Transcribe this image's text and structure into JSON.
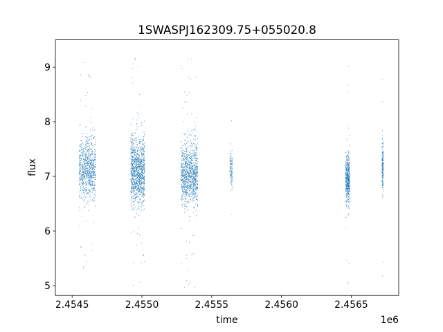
{
  "chart_data": {
    "type": "scatter",
    "title": "1SWASPJ162309.75+055020.8",
    "xlabel": "time",
    "ylabel": "flux",
    "x_offset_label": "1e6",
    "xlim": [
      2.45438,
      2.45684
    ],
    "ylim": [
      4.82,
      9.5
    ],
    "x_ticks": [
      2.4545,
      2.455,
      2.4555,
      2.456,
      2.4565
    ],
    "x_tick_labels": [
      "2.4545",
      "2.4550",
      "2.4555",
      "2.4560",
      "2.4565"
    ],
    "y_ticks": [
      5,
      6,
      7,
      8,
      9
    ],
    "y_tick_labels": [
      "5",
      "6",
      "7",
      "8",
      "9"
    ],
    "grid": false,
    "legend": "none",
    "marker_color": "#1f77b4",
    "series": [
      {
        "values": [
          {
            "x_range": [
              2.45455,
              2.45467
            ],
            "y_center": 7.15,
            "y_spread": 0.75,
            "points": 900
          },
          {
            "x_range": [
              2.45492,
              2.45502
            ],
            "y_center": 7.1,
            "y_spread": 0.8,
            "points": 1200
          },
          {
            "x_range": [
              2.45528,
              2.4554
            ],
            "y_center": 7.05,
            "y_spread": 0.75,
            "points": 1100
          },
          {
            "x_range": [
              2.45563,
              2.45565
            ],
            "y_center": 7.15,
            "y_spread": 0.45,
            "points": 120
          },
          {
            "x_range": [
              2.45646,
              2.45649
            ],
            "y_center": 6.95,
            "y_spread": 0.6,
            "points": 500
          },
          {
            "x_range": [
              2.45672,
              2.45673
            ],
            "y_center": 7.2,
            "y_spread": 0.6,
            "points": 200
          }
        ]
      }
    ]
  }
}
